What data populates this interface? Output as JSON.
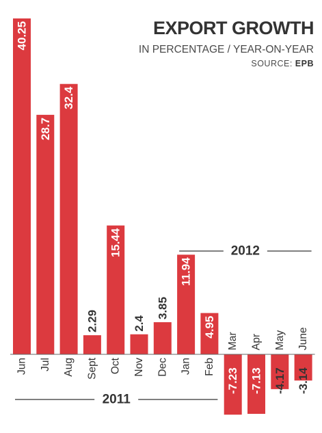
{
  "chart_data": {
    "type": "bar",
    "title": "EXPORT GROWTH",
    "subtitle": "IN PERCENTAGE / YEAR-ON-YEAR",
    "source_label": "SOURCE:",
    "source_name": "EPB",
    "categories": [
      "Jun",
      "Jul",
      "Aug",
      "Sept",
      "Oct",
      "Nov",
      "Dec",
      "Jan",
      "Feb",
      "Mar",
      "Apr",
      "May",
      "June"
    ],
    "values": [
      40.25,
      28.7,
      32.4,
      2.29,
      15.44,
      2.4,
      3.85,
      11.94,
      4.95,
      -7.23,
      -7.13,
      -4.17,
      -3.14
    ],
    "value_labels": [
      "40.25",
      "28.7",
      "32.4",
      "2.29",
      "15.44",
      "2.4",
      "3.85",
      "11.94",
      "4.95",
      "-7.23",
      "-7.13",
      "-4.17",
      "-3.14"
    ],
    "year_groups": [
      {
        "label": "2011",
        "from": 0,
        "to": 8
      },
      {
        "label": "2012",
        "from": 7,
        "to": 12
      }
    ],
    "ylim": [
      -8,
      41
    ],
    "bar_color": "#dc3a3f",
    "legend": "none",
    "grid": false
  }
}
